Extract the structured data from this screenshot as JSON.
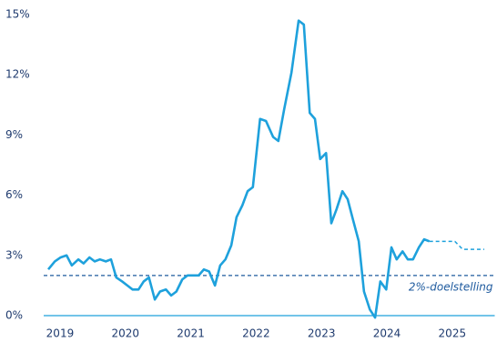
{
  "chart_data": {
    "type": "line",
    "xlim": [
      2018.75,
      2025.65
    ],
    "xticks": [
      2019,
      2020,
      2021,
      2022,
      2023,
      2024,
      2025
    ],
    "ylim": [
      -0.5,
      15.5
    ],
    "yticks": [
      {
        "value": 0,
        "label": "0%"
      },
      {
        "value": 3,
        "label": "3%"
      },
      {
        "value": 6,
        "label": "6%"
      },
      {
        "value": 9,
        "label": "9%"
      },
      {
        "value": 12,
        "label": "12%"
      },
      {
        "value": 15,
        "label": "15%"
      }
    ],
    "grid": false,
    "target_line": {
      "value": 2,
      "label": "2%-doelstelling",
      "color": "#1e5a9e"
    },
    "series": [
      {
        "color": "#1ea1dc",
        "dashed": false,
        "x": [
          2018.82,
          2018.92,
          2019.01,
          2019.1,
          2019.18,
          2019.28,
          2019.36,
          2019.45,
          2019.53,
          2019.61,
          2019.7,
          2019.78,
          2019.86,
          2019.95,
          2020.03,
          2020.11,
          2020.2,
          2020.28,
          2020.36,
          2020.45,
          2020.53,
          2020.62,
          2020.7,
          2020.78,
          2020.87,
          2020.95,
          2021.03,
          2021.12,
          2021.2,
          2021.28,
          2021.37,
          2021.45,
          2021.53,
          2021.62,
          2021.7,
          2021.79,
          2021.87,
          2021.95,
          2022.06,
          2022.15,
          2022.26,
          2022.34,
          2022.43,
          2022.54,
          2022.65,
          2022.73,
          2022.82,
          2022.9,
          2022.98,
          2023.07,
          2023.15,
          2023.23,
          2023.32,
          2023.4,
          2023.48,
          2023.57,
          2023.65,
          2023.74,
          2023.82,
          2023.9,
          2023.99,
          2024.07,
          2024.15,
          2024.24,
          2024.32,
          2024.4,
          2024.49,
          2024.57,
          2024.65
        ],
        "values": [
          2.3,
          2.7,
          2.9,
          3.0,
          2.5,
          2.8,
          2.6,
          2.9,
          2.7,
          2.8,
          2.7,
          2.8,
          1.9,
          1.7,
          1.5,
          1.3,
          1.3,
          1.7,
          1.9,
          0.8,
          1.2,
          1.3,
          1.0,
          1.2,
          1.8,
          2.0,
          2.0,
          2.0,
          2.3,
          2.2,
          1.5,
          2.5,
          2.8,
          3.5,
          4.9,
          5.5,
          6.2,
          6.4,
          9.8,
          9.7,
          8.9,
          8.7,
          10.3,
          12.1,
          14.7,
          14.5,
          10.1,
          9.8,
          7.8,
          8.1,
          4.6,
          5.3,
          6.2,
          5.8,
          4.8,
          3.7,
          1.2,
          0.3,
          -0.1,
          1.7,
          1.3,
          3.4,
          2.8,
          3.2,
          2.8,
          2.8,
          3.4,
          3.8,
          3.7
        ]
      },
      {
        "color": "#1ea1dc",
        "dashed": true,
        "x": [
          2024.65,
          2025.04,
          2025.16,
          2025.49
        ],
        "values": [
          3.7,
          3.7,
          3.3,
          3.3
        ]
      }
    ]
  }
}
